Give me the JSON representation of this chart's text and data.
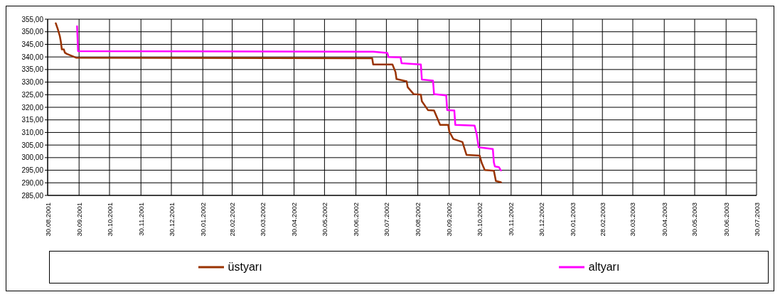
{
  "chart_data": {
    "type": "line",
    "marker": "none",
    "grid": true,
    "legend": "bottom",
    "xlim": [
      "2001-08-30",
      "2003-07-30"
    ],
    "xticks": [
      {
        "value": "2001-08-30",
        "label": "30.08.2001"
      },
      {
        "value": "2001-09-30",
        "label": "30.09.2001"
      },
      {
        "value": "2001-10-30",
        "label": "30.10.2001"
      },
      {
        "value": "2001-11-30",
        "label": "30.11.2001"
      },
      {
        "value": "2001-12-30",
        "label": "30.12.2001"
      },
      {
        "value": "2002-01-30",
        "label": "30.01.2002"
      },
      {
        "value": "2002-02-28",
        "label": "28.02.2002"
      },
      {
        "value": "2002-03-30",
        "label": "30.03.2002"
      },
      {
        "value": "2002-04-30",
        "label": "30.04.2002"
      },
      {
        "value": "2002-05-30",
        "label": "30.05.2002"
      },
      {
        "value": "2002-06-30",
        "label": "30.06.2002"
      },
      {
        "value": "2002-07-30",
        "label": "30.07.2002"
      },
      {
        "value": "2002-08-30",
        "label": "30.08.2002"
      },
      {
        "value": "2002-09-30",
        "label": "30.09.2002"
      },
      {
        "value": "2002-10-30",
        "label": "30.10.2002"
      },
      {
        "value": "2002-11-30",
        "label": "30.11.2002"
      },
      {
        "value": "2002-12-30",
        "label": "30.12.2002"
      },
      {
        "value": "2003-01-30",
        "label": "30.01.2003"
      },
      {
        "value": "2003-02-28",
        "label": "28.02.2003"
      },
      {
        "value": "2003-03-30",
        "label": "30.03.2003"
      },
      {
        "value": "2003-04-30",
        "label": "30.04.2003"
      },
      {
        "value": "2003-05-30",
        "label": "30.05.2003"
      },
      {
        "value": "2003-06-30",
        "label": "30.06.2003"
      },
      {
        "value": "2003-07-30",
        "label": "30.07.2003"
      }
    ],
    "ylim": [
      285,
      355
    ],
    "yticks": [
      {
        "value": 285,
        "label": "285,00"
      },
      {
        "value": 290,
        "label": "290,00"
      },
      {
        "value": 295,
        "label": "295,00"
      },
      {
        "value": 300,
        "label": "300,00"
      },
      {
        "value": 305,
        "label": "305,00"
      },
      {
        "value": 310,
        "label": "310,00"
      },
      {
        "value": 315,
        "label": "315,00"
      },
      {
        "value": 320,
        "label": "320,00"
      },
      {
        "value": 325,
        "label": "325,00"
      },
      {
        "value": 330,
        "label": "330,00"
      },
      {
        "value": 335,
        "label": "335,00"
      },
      {
        "value": 340,
        "label": "340,00"
      },
      {
        "value": 345,
        "label": "345,00"
      },
      {
        "value": 350,
        "label": "350,00"
      },
      {
        "value": 355,
        "label": "355,00"
      }
    ],
    "series": [
      {
        "name": "üstyarı",
        "color": "#993300",
        "x": [
          "2001-09-07",
          "2001-09-09",
          "2001-09-11",
          "2001-09-12",
          "2001-09-13",
          "2001-09-15",
          "2001-09-16",
          "2001-09-18",
          "2001-09-27",
          "2002-07-16",
          "2002-07-17",
          "2002-08-05",
          "2002-08-08",
          "2002-08-09",
          "2002-08-19",
          "2002-08-20",
          "2002-08-26",
          "2002-09-02",
          "2002-09-03",
          "2002-09-09",
          "2002-09-15",
          "2002-09-18",
          "2002-09-21",
          "2002-09-29",
          "2002-09-30",
          "2002-10-04",
          "2002-10-13",
          "2002-10-17",
          "2002-10-30",
          "2002-11-01",
          "2002-11-04",
          "2002-11-13",
          "2002-11-15",
          "2002-11-20"
        ],
        "values": [
          353.4,
          351.1,
          348.3,
          346.1,
          343.0,
          343.0,
          341.7,
          341.2,
          339.7,
          339.5,
          337.0,
          337.0,
          334.0,
          331.2,
          330.3,
          328.0,
          325.2,
          325.0,
          322.4,
          318.9,
          318.7,
          315.9,
          313.0,
          313.0,
          310.4,
          307.4,
          306.2,
          301.1,
          300.8,
          297.9,
          295.1,
          294.8,
          290.7,
          290.2
        ]
      },
      {
        "name": "altyarı",
        "color": "#ff00ff",
        "x": [
          "2001-09-28",
          "2001-09-29",
          "2002-07-17",
          "2002-07-31",
          "2002-08-01",
          "2002-08-13",
          "2002-08-14",
          "2002-09-02",
          "2002-09-03",
          "2002-09-14",
          "2002-09-15",
          "2002-09-27",
          "2002-09-28",
          "2002-10-05",
          "2002-10-06",
          "2002-10-25",
          "2002-10-27",
          "2002-10-29",
          "2002-11-12",
          "2002-11-13",
          "2002-11-14",
          "2002-11-18",
          "2002-11-20"
        ],
        "values": [
          352.2,
          342.3,
          342.1,
          341.6,
          340.0,
          339.8,
          337.5,
          337.0,
          331.0,
          330.6,
          325.2,
          324.7,
          318.9,
          318.7,
          313.0,
          312.7,
          309.4,
          304.1,
          303.4,
          298.1,
          296.5,
          296.2,
          294.9
        ]
      }
    ]
  }
}
